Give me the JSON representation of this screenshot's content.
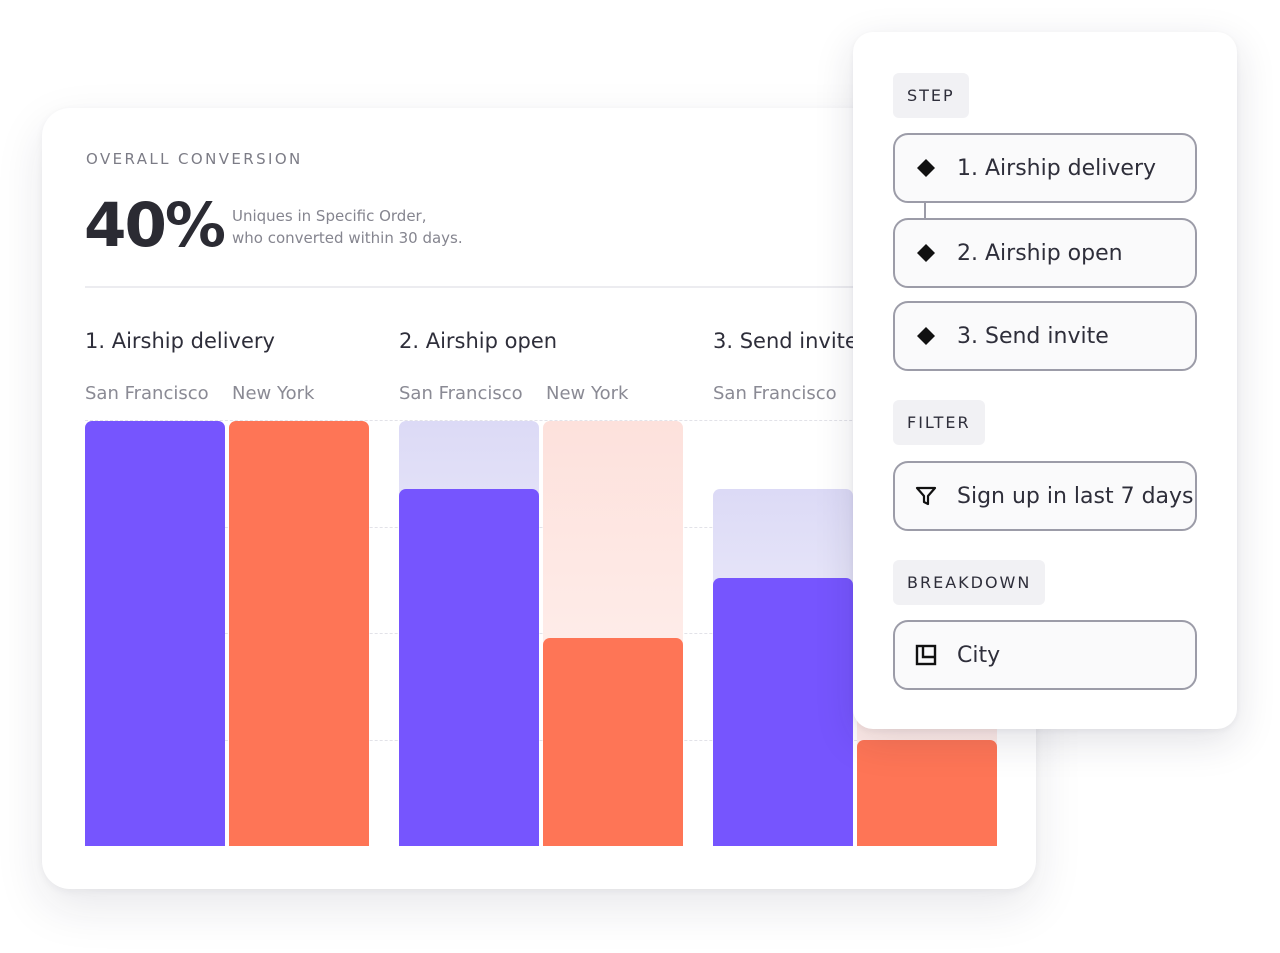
{
  "overall": {
    "heading": "OVERALL CONVERSION",
    "percent": "40%",
    "desc_line1": "Uniques in Specific Order,",
    "desc_line2": "who converted within 30 days."
  },
  "chart_data": {
    "type": "bar",
    "categories": [
      "1. Airship delivery",
      "2. Airship open",
      "3. Send invite"
    ],
    "series": [
      {
        "name": "San Francisco",
        "color": "#7655fe",
        "values": [
          100,
          84,
          63
        ],
        "ghost_values": [
          100,
          100,
          84
        ]
      },
      {
        "name": "New York",
        "color": "#fe7556",
        "values": [
          100,
          49,
          25
        ],
        "ghost_values": [
          100,
          100,
          49
        ]
      }
    ],
    "ylim": [
      0,
      100
    ],
    "group_labels": [
      [
        "San Francisco",
        "New York"
      ],
      [
        "San Francisco",
        "New York"
      ],
      [
        "San Francisco"
      ]
    ]
  },
  "panel": {
    "step_label": "STEP",
    "steps": [
      "1. Airship delivery",
      "2. Airship open",
      "3. Send invite"
    ],
    "filter_label": "FILTER",
    "filter_value": "Sign up in last 7 days",
    "breakdown_label": "BREAKDOWN",
    "breakdown_value": "City",
    "icons": {
      "step": "diamond-icon",
      "filter": "funnel-icon",
      "breakdown": "breakdown-icon"
    }
  }
}
